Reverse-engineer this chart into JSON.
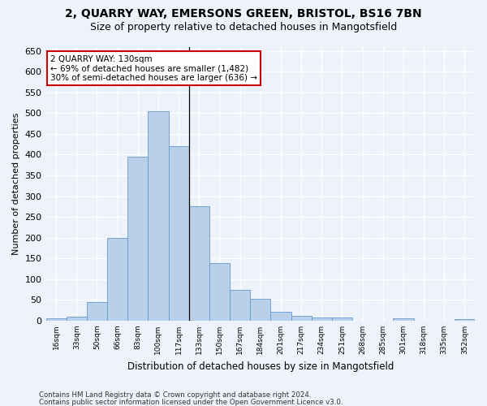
{
  "title1": "2, QUARRY WAY, EMERSONS GREEN, BRISTOL, BS16 7BN",
  "title2": "Size of property relative to detached houses in Mangotsfield",
  "xlabel": "Distribution of detached houses by size in Mangotsfield",
  "ylabel": "Number of detached properties",
  "categories": [
    "16sqm",
    "33sqm",
    "50sqm",
    "66sqm",
    "83sqm",
    "100sqm",
    "117sqm",
    "133sqm",
    "150sqm",
    "167sqm",
    "184sqm",
    "201sqm",
    "217sqm",
    "234sqm",
    "251sqm",
    "268sqm",
    "285sqm",
    "301sqm",
    "318sqm",
    "335sqm",
    "352sqm"
  ],
  "values": [
    5,
    10,
    45,
    200,
    395,
    505,
    420,
    275,
    138,
    75,
    52,
    22,
    12,
    8,
    8,
    0,
    0,
    6,
    0,
    0,
    3
  ],
  "bar_color": "#b8d0ea",
  "bar_edge_color": "#6699cc",
  "annotation_line1": "2 QUARRY WAY: 130sqm",
  "annotation_line2": "← 69% of detached houses are smaller (1,482)",
  "annotation_line3": "30% of semi-detached houses are larger (636) →",
  "annotation_box_color": "#ffffff",
  "annotation_box_edge_color": "#cc0000",
  "ylim": [
    0,
    660
  ],
  "yticks": [
    0,
    50,
    100,
    150,
    200,
    250,
    300,
    350,
    400,
    450,
    500,
    550,
    600,
    650
  ],
  "footer1": "Contains HM Land Registry data © Crown copyright and database right 2024.",
  "footer2": "Contains public sector information licensed under the Open Government Licence v3.0.",
  "background_color": "#eef2fa",
  "grid_color": "#ffffff",
  "title1_fontsize": 10,
  "title2_fontsize": 9,
  "vline_x_index": 6.5
}
